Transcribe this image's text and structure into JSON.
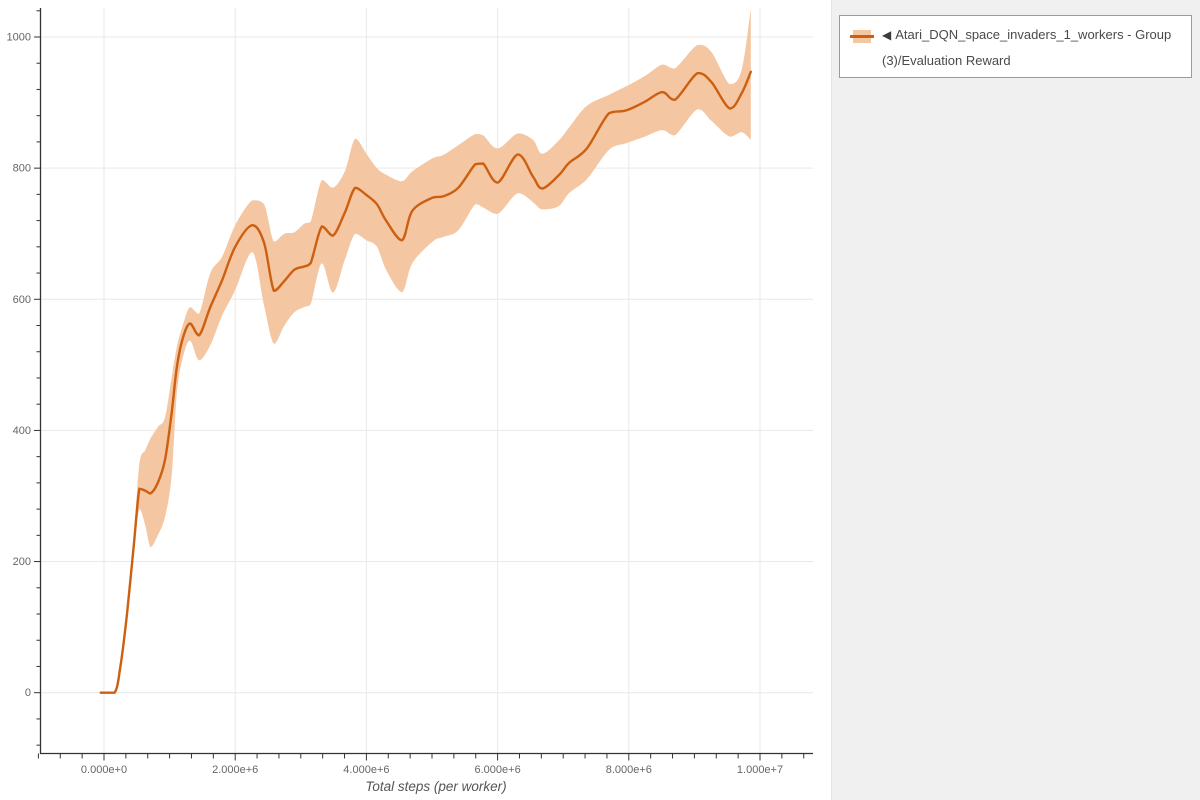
{
  "page": {
    "background": "#f0f0f0",
    "card_background": "#ffffff"
  },
  "legend": {
    "marker": "◀",
    "label": "Atari_DQN_space_invaders_1_workers - Group(3)/Evaluation Reward",
    "line_color": "#cd5f11",
    "band_color": "#f4c7a2",
    "border_color": "#9b9b9b",
    "text_color": "#4a4a4a"
  },
  "chart_data": {
    "type": "line",
    "title": "",
    "xlabel": "Total steps (per worker)",
    "ylabel": "",
    "grid": true,
    "legend_position": "top-right",
    "line_color": "#cd5f11",
    "band_color": "#f4c7a2",
    "grid_color": "#e9e9e9",
    "axis_color": "#333333",
    "tick_label_color": "#666666",
    "axis_title_color": "#555555",
    "xlim_million_steps": [
      -1.03,
      10.8
    ],
    "ylim": [
      -93,
      1044
    ],
    "y_ticks": [
      0,
      200,
      400,
      600,
      800,
      1000
    ],
    "y_minor_step": 40,
    "x_minor_step_million": 0.3333,
    "x_ticks": [
      {
        "value_million": 0,
        "label": "0.000e+0"
      },
      {
        "value_million": 2,
        "label": "2.000e+6"
      },
      {
        "value_million": 4,
        "label": "4.000e+6"
      },
      {
        "value_million": 6,
        "label": "6.000e+6"
      },
      {
        "value_million": 8,
        "label": "8.000e+6"
      },
      {
        "value_million": 10,
        "label": "1.000e+7"
      }
    ],
    "series": [
      {
        "name": "Atari_DQN_space_invaders_1_workers - Group(3)/Evaluation Reward",
        "x_million_steps": [
          -0.05,
          0.16,
          0.25,
          0.35,
          0.45,
          0.54,
          0.63,
          0.71,
          0.82,
          0.93,
          1.03,
          1.11,
          1.2,
          1.31,
          1.45,
          1.62,
          1.8,
          2.0,
          2.26,
          2.44,
          2.59,
          2.75,
          2.9,
          3.05,
          3.15,
          3.32,
          3.49,
          3.67,
          3.83,
          4.0,
          4.16,
          4.3,
          4.54,
          4.7,
          5.01,
          5.17,
          5.4,
          5.66,
          5.78,
          6.0,
          6.31,
          6.54,
          6.68,
          6.93,
          7.09,
          7.36,
          7.7,
          7.96,
          8.24,
          8.51,
          8.7,
          9.05,
          9.26,
          9.54,
          9.72,
          9.86
        ],
        "mean_reward": [
          0,
          0,
          40,
          120,
          220,
          311,
          308,
          304,
          320,
          355,
          426,
          496,
          540,
          563,
          545,
          588,
          629,
          680,
          713,
          686,
          613,
          628,
          645,
          650,
          655,
          711,
          697,
          732,
          770,
          759,
          745,
          720,
          690,
          735,
          755,
          757,
          770,
          806,
          807,
          778,
          821,
          787,
          769,
          789,
          808,
          830,
          884,
          888,
          901,
          916,
          904,
          945,
          931,
          891,
          914,
          947
        ]
      }
    ],
    "band": {
      "x_million_steps": [
        0.45,
        0.54,
        0.63,
        0.71,
        0.82,
        0.93,
        1.03,
        1.11,
        1.2,
        1.31,
        1.45,
        1.62,
        1.8,
        2.0,
        2.26,
        2.44,
        2.59,
        2.75,
        2.9,
        3.05,
        3.15,
        3.32,
        3.49,
        3.67,
        3.83,
        4.0,
        4.16,
        4.3,
        4.54,
        4.7,
        5.01,
        5.17,
        5.4,
        5.66,
        5.78,
        6.0,
        6.31,
        6.54,
        6.68,
        6.93,
        7.09,
        7.36,
        7.7,
        7.96,
        8.24,
        8.51,
        8.7,
        9.05,
        9.26,
        9.54,
        9.72,
        9.86
      ],
      "lower": [
        213,
        280,
        255,
        222,
        240,
        268,
        330,
        456,
        510,
        537,
        507,
        530,
        575,
        614,
        672,
        590,
        532,
        560,
        580,
        588,
        592,
        655,
        610,
        660,
        700,
        690,
        680,
        645,
        611,
        655,
        688,
        695,
        705,
        745,
        740,
        730,
        762,
        748,
        737,
        742,
        762,
        783,
        828,
        838,
        848,
        858,
        850,
        890,
        872,
        848,
        855,
        843
      ],
      "upper": [
        227,
        350,
        370,
        388,
        405,
        420,
        480,
        527,
        560,
        588,
        578,
        640,
        665,
        713,
        751,
        745,
        688,
        700,
        702,
        715,
        718,
        782,
        770,
        795,
        845,
        822,
        800,
        790,
        780,
        795,
        815,
        820,
        835,
        852,
        850,
        830,
        853,
        843,
        822,
        842,
        862,
        895,
        912,
        925,
        940,
        958,
        952,
        988,
        977,
        928,
        950,
        1043
      ]
    }
  }
}
